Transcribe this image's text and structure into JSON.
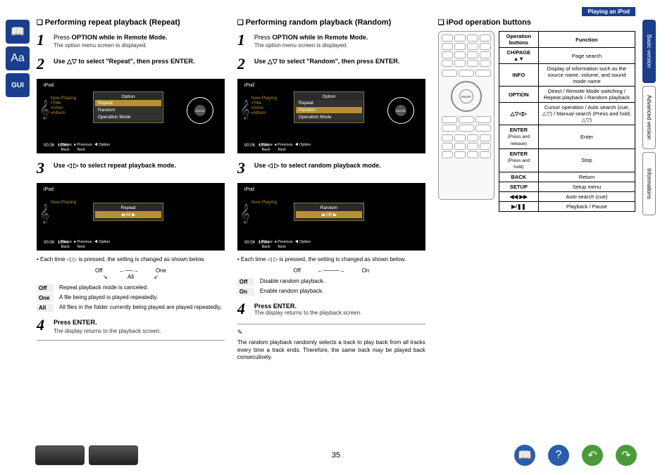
{
  "topbar": "Playing an iPod",
  "tabs": {
    "basic": "Basic version",
    "advanced": "Advanced version",
    "info": "Informations"
  },
  "page_number": "35",
  "col1": {
    "title": "Performing repeat playback (Repeat)",
    "step1a": "Press ",
    "step1b": "OPTION",
    "step1c": " while in Remote Mode.",
    "step1_sub": "The option menu screen is displayed.",
    "step2a": "Use △▽ to select \"Repeat\", then press ",
    "step2b": "ENTER",
    "step2c": ".",
    "step3": "Use ◁ ▷ to select repeat playback mode.",
    "note1": "• Each time ◁ ▷ is pressed, the setting is changed as shown below.",
    "cycle_off": "Off",
    "cycle_one": "One",
    "cycle_all": "All",
    "def_off": "Repeat playback mode is canceled.",
    "def_one": "A file being played is played repeatedly.",
    "def_all": "All files in the folder currently being played are played repeatedly.",
    "step4a": "Press ",
    "step4b": "ENTER",
    "step4c": ".",
    "step4_sub": "The display returns to the playback screen.",
    "osd1": {
      "title": "iPod",
      "opt": "Option",
      "r1": "Repeat",
      "r2": "Random",
      "r3": "Operation Mode"
    },
    "osd2": {
      "title": "iPod",
      "r1": "Repeat",
      "val": "All"
    }
  },
  "col2": {
    "title": "Performing random playback (Random)",
    "step1a": "Press ",
    "step1b": "OPTION",
    "step1c": " while in Remote Mode.",
    "step1_sub": "The option menu screen is displayed.",
    "step2a": "Use △▽ to select \"Random\", then press ",
    "step2b": "ENTER",
    "step2c": ".",
    "step3": "Use ◁ ▷ to select random playback mode.",
    "note1": "• Each time ◁ ▷ is pressed, the setting is changed as shown below.",
    "cycle_off": "Off",
    "cycle_on": "On",
    "def_off": "Disable random playback.",
    "def_on": "Enable random playback.",
    "step4a": "Press ",
    "step4b": "ENTER",
    "step4c": ".",
    "step4_sub": "The display returns to the playback screen.",
    "note2": "The random playback randomly selects a track to play back from all tracks every time a track ends. Therefore, the same track may be played back consecutively.",
    "osd1": {
      "title": "iPod",
      "opt": "Option",
      "r1": "Repeat",
      "r2": "Random",
      "r3": "Operation Mode"
    },
    "osd2": {
      "title": "iPod",
      "r1": "Random",
      "val": "Off"
    }
  },
  "col3": {
    "title": "iPod operation buttons",
    "th1": "Operation buttons",
    "th2": "Function",
    "rows": [
      {
        "b": "CH/PAGE ▲▼",
        "f": "Page search"
      },
      {
        "b": "INFO",
        "f": "Display of information such as the source name, volume, and sound mode name"
      },
      {
        "b": "OPTION",
        "f": "Direct / Remote Mode switching / Repeat playback / Random playback"
      },
      {
        "b": "△▽◁▷",
        "f": "Cursor operation / Auto search (cue, △▽) / Manual search (Press and hold, △▽)"
      },
      {
        "b": "ENTER",
        "sub": "(Press and release)",
        "f": "Enter"
      },
      {
        "b": "ENTER",
        "sub": "(Press and hold)",
        "f": "Stop"
      },
      {
        "b": "BACK",
        "f": "Return"
      },
      {
        "b": "SETUP",
        "f": "Setup menu"
      },
      {
        "b": "◀◀ ▶▶",
        "f": "Auto search (cue)"
      },
      {
        "b": "▶/❚❚",
        "f": "Playback / Pause"
      }
    ]
  }
}
